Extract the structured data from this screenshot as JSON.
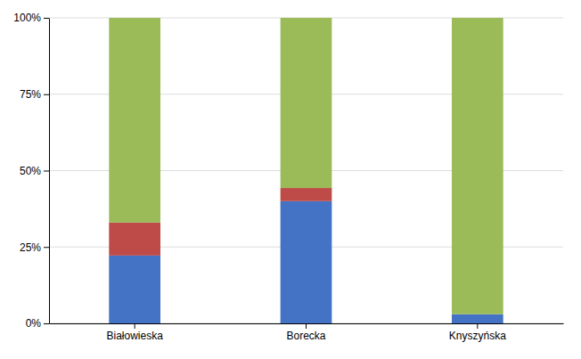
{
  "chart_data": {
    "type": "bar",
    "categories": [
      "Białowieska",
      "Borecka",
      "Knyszyńska"
    ],
    "series": [
      {
        "color": "#4472C4",
        "values": [
          0.222,
          0.4,
          0.03
        ]
      },
      {
        "color": "#BE4B48",
        "values": [
          0.108,
          0.043,
          0.0
        ]
      },
      {
        "color": "#9BBB59",
        "values": [
          0.67,
          0.557,
          0.97
        ]
      }
    ],
    "stacked": true,
    "ylim": [
      0,
      1.0
    ],
    "yticks": [
      {
        "value": 0.0,
        "label": "0%"
      },
      {
        "value": 0.25,
        "label": "25%"
      },
      {
        "value": 0.5,
        "label": "50%"
      },
      {
        "value": 0.75,
        "label": "75%"
      },
      {
        "value": 1.0,
        "label": "100%"
      }
    ],
    "grid": true
  }
}
